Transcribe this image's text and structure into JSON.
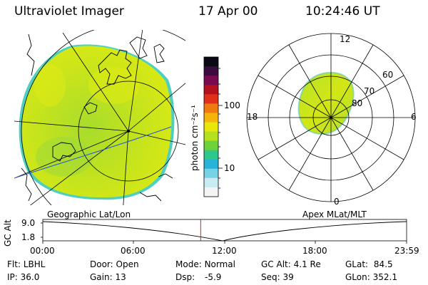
{
  "header": {
    "instrument": "Ultraviolet Imager",
    "date": "17 Apr 00",
    "time": "10:24:46 UT"
  },
  "colorbar": {
    "unit_label": "photon cm⁻²s⁻¹",
    "ticks": [
      "100",
      "10"
    ],
    "colors": [
      "#0a0a14",
      "#3a0a40",
      "#7a0a50",
      "#b4101e",
      "#e0301a",
      "#f07a10",
      "#f4b40a",
      "#e8e60a",
      "#b4e01e",
      "#6ed23a",
      "#2cc88c",
      "#28b4d8",
      "#78d2e6",
      "#c8ecf2",
      "#f4f4f4"
    ]
  },
  "polar_plot": {
    "mlt_labels": {
      "top": "12",
      "right": "6",
      "bottom": "0",
      "left": "18"
    },
    "mlat_labels": [
      "60",
      "70",
      "80"
    ]
  },
  "timeline": {
    "y_axis_label": "GC Alt",
    "y_ticks": [
      "9.0",
      "1.8"
    ],
    "left_title": "Geographic Lat/Lon",
    "right_title": "Apex MLat/MLT",
    "x_ticks": [
      "00:00",
      "06:00",
      "12:00",
      "18:00",
      "23:59"
    ],
    "current_time_fraction": 0.434
  },
  "info": {
    "flt_label": "Flt:",
    "flt_value": "LBHL",
    "door_label": "Door:",
    "door_value": "Open",
    "mode_label": "Mode:",
    "mode_value": "Normal",
    "gcalt_label": "GC Alt:",
    "gcalt_value": "4.1 Re",
    "glat_label": "GLat:",
    "glat_value": "84.5",
    "ip_label": "IP:",
    "ip_value": "36.0",
    "gain_label": "Gain:",
    "gain_value": "13",
    "dsp_label": "Dsp:",
    "dsp_value": "-5.9",
    "seq_label": "Seq:",
    "seq_value": "39",
    "glon_label": "GLon:",
    "glon_value": "352.1"
  }
}
